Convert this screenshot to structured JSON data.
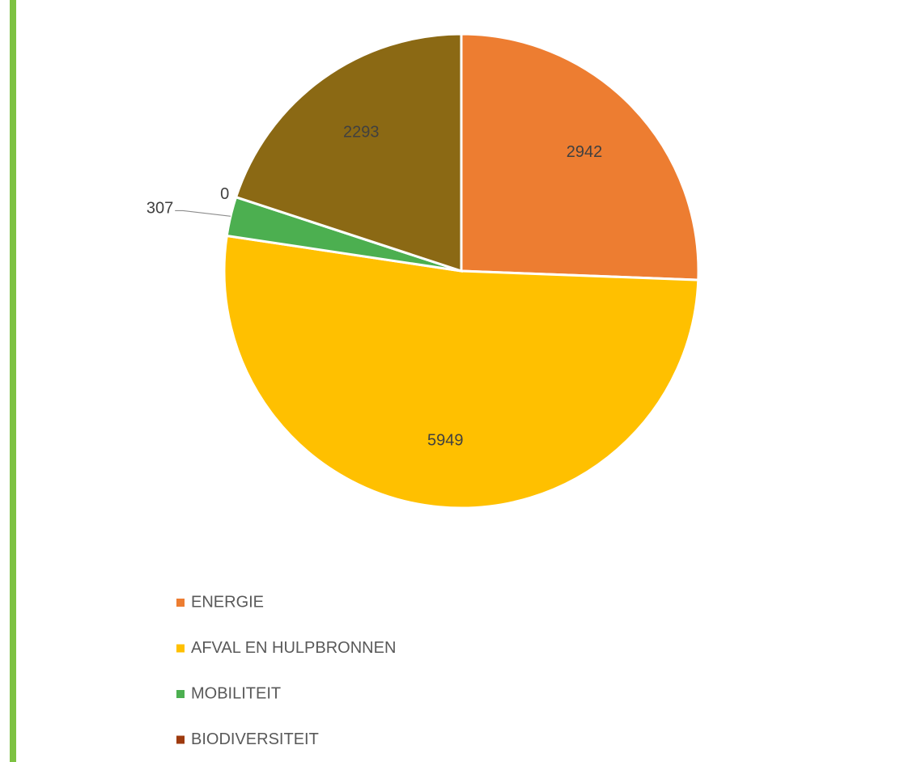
{
  "chart_data": {
    "type": "pie",
    "categories": [
      "ENERGIE",
      "AFVAL EN HULPBRONNEN",
      "MOBILITEIT",
      "BIODIVERSITEIT",
      null
    ],
    "values": [
      2942,
      5949,
      307,
      0,
      2293
    ],
    "colors": [
      "#ed7d31",
      "#ffc000",
      "#4caf50",
      "#9e3a0e",
      "#8b6914"
    ]
  }
}
